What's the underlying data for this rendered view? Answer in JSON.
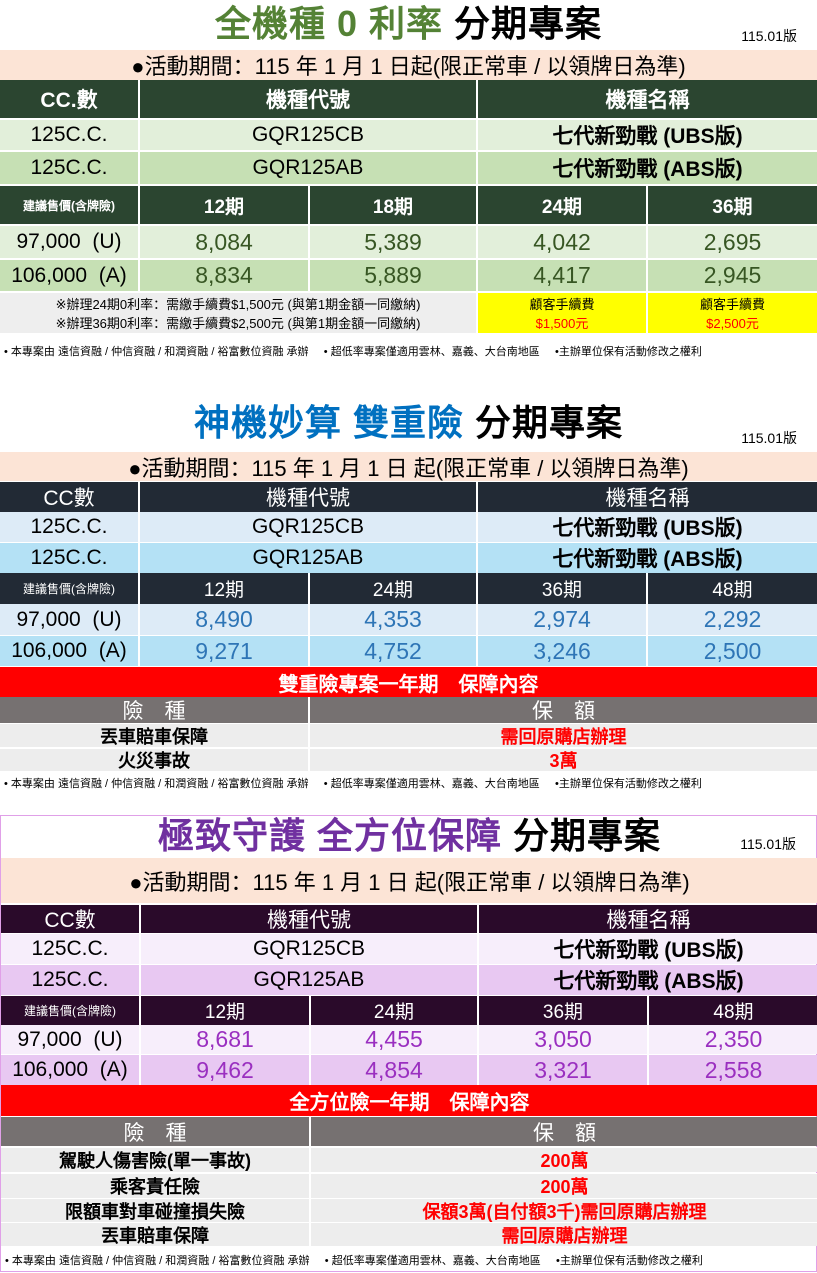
{
  "sections": [
    {
      "title_a": "全機種 0 利率",
      "title_b": "分期專案",
      "version": "115.01版",
      "activity": "●活動期間：115 年 1 月 1 日起(限正常車 / 以領牌日為準)",
      "headers": [
        "CC.數",
        "機種代號",
        "機種名稱"
      ],
      "models": [
        [
          "125C.C.",
          "GQR125CB",
          "七代新勁戰 (UBS版)"
        ],
        [
          "125C.C.",
          "GQR125AB",
          "七代新勁戰 (ABS版)"
        ]
      ],
      "price_header": [
        "建議售價(含牌險)",
        "12期",
        "18期",
        "24期",
        "36期"
      ],
      "prices": [
        [
          "97,000  (U)",
          "8,084",
          "5,389",
          "4,042",
          "2,695"
        ],
        [
          "106,000  (A)",
          "8,834",
          "5,889",
          "4,417",
          "2,945"
        ]
      ],
      "notes": [
        "※辦理24期0利率：需繳手續費$1,500元 (與第1期金額一同繳納)",
        "※辦理36期0利率：需繳手續費$2,500元 (與第1期金額一同繳納)"
      ],
      "fees": [
        {
          "label": "顧客手續費",
          "amount": "$1,500元"
        },
        {
          "label": "顧客手續費",
          "amount": "$2,500元"
        }
      ],
      "footer": "• 本專案由 遠信資融 / 仲信資融 / 和潤資融 / 裕富數位資融 承辦     • 超低率專案僅適用雲林、嘉義、大台南地區     •主辦單位保有活動修改之權利",
      "colors": {
        "title": "#548235",
        "header": "#2b4530",
        "row1": "#e2efda",
        "row2": "#c6e0b4",
        "num": "#375623"
      }
    },
    {
      "title_a": "神機妙算 雙重險",
      "title_b": "分期專案",
      "version": "115.01版",
      "activity": "●活動期間：115 年 1 月 1 日 起(限正常車 / 以領牌日為準)",
      "headers": [
        "CC數",
        "機種代號",
        "機種名稱"
      ],
      "models": [
        [
          "125C.C.",
          "GQR125CB",
          "七代新勁戰 (UBS版)"
        ],
        [
          "125C.C.",
          "GQR125AB",
          "七代新勁戰 (ABS版)"
        ]
      ],
      "price_header": [
        "建議售價(含牌險)",
        "12期",
        "24期",
        "36期",
        "48期"
      ],
      "prices": [
        [
          "97,000  (U)",
          "8,490",
          "4,353",
          "2,974",
          "2,292"
        ],
        [
          "106,000  (A)",
          "9,271",
          "4,752",
          "3,246",
          "2,500"
        ]
      ],
      "insurance": {
        "banner": "雙重險專案一年期　保障內容",
        "headers": [
          "險　種",
          "保　額"
        ],
        "rows": [
          [
            "丟車賠車保障",
            "需回原購店辦理"
          ],
          [
            "火災事故",
            "3萬"
          ]
        ]
      },
      "footer": "• 本專案由 遠信資融 / 仲信資融 / 和潤資融 / 裕富數位資融 承辦     • 超低率專案僅適用雲林、嘉義、大台南地區     •主辦單位保有活動修改之權利",
      "colors": {
        "title": "#0070c0",
        "header": "#222a35",
        "row1": "#ddebf7",
        "row2": "#b4e1f5",
        "num": "#2e75b6"
      }
    },
    {
      "title_a": "極致守護 全方位保障",
      "title_b": "分期專案",
      "version": "115.01版",
      "activity": "●活動期間：115 年 1 月 1 日 起(限正常車 / 以領牌日為準)",
      "headers": [
        "CC數",
        "機種代號",
        "機種名稱"
      ],
      "models": [
        [
          "125C.C.",
          "GQR125CB",
          "七代新勁戰 (UBS版)"
        ],
        [
          "125C.C.",
          "GQR125AB",
          "七代新勁戰 (ABS版)"
        ]
      ],
      "price_header": [
        "建議售價(含牌險)",
        "12期",
        "24期",
        "36期",
        "48期"
      ],
      "prices": [
        [
          "97,000  (U)",
          "8,681",
          "4,455",
          "3,050",
          "2,350"
        ],
        [
          "106,000  (A)",
          "9,462",
          "4,854",
          "3,321",
          "2,558"
        ]
      ],
      "insurance": {
        "banner": "全方位險一年期　保障內容",
        "headers": [
          "險　種",
          "保　額"
        ],
        "rows": [
          [
            "駕駛人傷害險(單一事故)",
            "200萬"
          ],
          [
            "乘客責任險",
            "200萬"
          ],
          [
            "限額車對車碰撞損失險",
            "保額3萬(自付額3千)需回原購店辦理"
          ],
          [
            "丟車賠車保障",
            "需回原購店辦理"
          ]
        ]
      },
      "footer": "• 本專案由 遠信資融 / 仲信資融 / 和潤資融 / 裕富數位資融 承辦     • 超低率專案僅適用雲林、嘉義、大台南地區     •主辦單位保有活動修改之權利",
      "colors": {
        "title": "#7030a0",
        "header": "#2a0a2a",
        "row1": "#f7eefb",
        "row2": "#e8c8f2",
        "num": "#9a2fc0"
      }
    }
  ],
  "colors": {
    "banner": "#ff0000",
    "gray_header": "#767171",
    "ins_row": "#ededed",
    "fee_bg": "#ffff00",
    "red_text": "#ff0000"
  }
}
